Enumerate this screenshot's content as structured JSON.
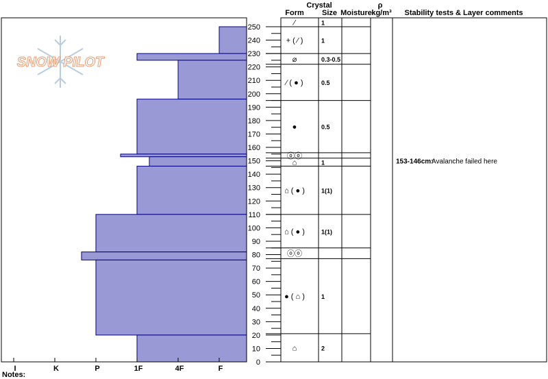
{
  "chart_data": {
    "type": "bar",
    "subtype": "snow-profile-hardness",
    "orientation": "horizontal",
    "hardness_scale": [
      "I",
      "K",
      "P",
      "1F",
      "4F",
      "F"
    ],
    "height_axis": {
      "ylim": [
        0,
        250
      ],
      "ticks": [
        0,
        10,
        20,
        30,
        40,
        50,
        60,
        70,
        80,
        90,
        100,
        110,
        120,
        130,
        140,
        150,
        160,
        170,
        180,
        190,
        200,
        210,
        220,
        230,
        240,
        250
      ],
      "unit": "cm"
    },
    "colors": {
      "hardness_fill": "#9999d6",
      "stroke": "#000080"
    },
    "hardness_layers": [
      {
        "bottom": 230,
        "top": 250,
        "hardness_index": 5.0
      },
      {
        "bottom": 225,
        "top": 230,
        "hardness_index": 3.0
      },
      {
        "bottom": 196,
        "top": 225,
        "hardness_index": 4.0
      },
      {
        "bottom": 155,
        "top": 196,
        "hardness_index": 3.0
      },
      {
        "bottom": 153,
        "top": 155,
        "hardness_index": 2.6
      },
      {
        "bottom": 146,
        "top": 153,
        "hardness_index": 3.3
      },
      {
        "bottom": 110,
        "top": 146,
        "hardness_index": 3.0
      },
      {
        "bottom": 82,
        "top": 110,
        "hardness_index": 2.0
      },
      {
        "bottom": 76,
        "top": 82,
        "hardness_index": 1.65
      },
      {
        "bottom": 20,
        "top": 76,
        "hardness_index": 2.0
      },
      {
        "bottom": 0,
        "top": 20,
        "hardness_index": 3.0
      }
    ],
    "table_headers": {
      "crystal": "Crystal",
      "form": "Form",
      "size": "Size",
      "moisture": "Moisture",
      "rho": "ρ",
      "density_unit": "kg/m³",
      "comments": "Stability tests & Layer comments"
    },
    "layer_rows": [
      {
        "bottom": 250,
        "top": 255,
        "form": "⁄",
        "size": "1"
      },
      {
        "bottom": 230,
        "top": 250,
        "form": "+ ( ⁄ )",
        "size": "1"
      },
      {
        "bottom": 222,
        "top": 230,
        "form": "⌀",
        "size": "0.3-0.5"
      },
      {
        "bottom": 195,
        "top": 222,
        "form": "⁄ ( ● )",
        "size": "0.5"
      },
      {
        "bottom": 156,
        "top": 195,
        "form": "●",
        "size": "0.5"
      },
      {
        "bottom": 152,
        "top": 156,
        "form": "ⓞⓞ",
        "size": ""
      },
      {
        "bottom": 146,
        "top": 152,
        "form": "⌂",
        "size": "1"
      },
      {
        "bottom": 110,
        "top": 146,
        "form": "⌂ ( ● )",
        "size": "1(1)"
      },
      {
        "bottom": 85,
        "top": 110,
        "form": "⌂ ( ● )",
        "size": "1(1)"
      },
      {
        "bottom": 77,
        "top": 85,
        "form": "ⓞⓞ",
        "size": ""
      },
      {
        "bottom": 21,
        "top": 77,
        "form": "● ( ⌂ )",
        "size": "1"
      },
      {
        "bottom": 0,
        "top": 21,
        "form": "⌂",
        "size": "2"
      }
    ],
    "comments": [
      {
        "label": "153-146cm:",
        "text": "Avalanche failed here",
        "at": 150
      }
    ]
  },
  "logo_text": "SNOW PILOT",
  "notes_label": "Notes:"
}
